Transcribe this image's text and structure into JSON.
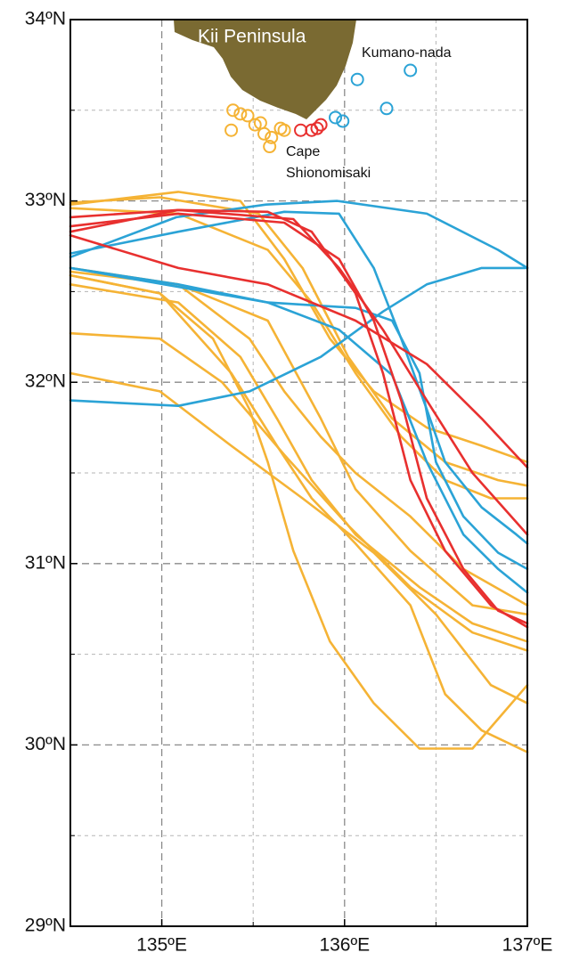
{
  "chart_data": {
    "type": "map",
    "xlim": [
      134.5,
      137
    ],
    "ylim": [
      29,
      34
    ],
    "xticks": [
      {
        "value": 135,
        "label": "135ºE"
      },
      {
        "value": 136,
        "label": "136ºE"
      },
      {
        "value": 137,
        "label": "137ºE"
      }
    ],
    "yticks": [
      {
        "value": 29,
        "label": "29ºN"
      },
      {
        "value": 30,
        "label": "30ºN"
      },
      {
        "value": 31,
        "label": "31ºN"
      },
      {
        "value": 32,
        "label": "32ºN"
      },
      {
        "value": 33,
        "label": "33ºN"
      },
      {
        "value": 34,
        "label": "34ºN"
      }
    ],
    "xminorticks": [
      135.5,
      136.5
    ],
    "yminorticks": [
      29.5,
      30.5,
      31.5,
      32.5,
      33.5
    ],
    "grid": true,
    "annotations": [
      "Kii Peninsula",
      "Kumano-nada",
      "Cape",
      "Shionomisaki"
    ],
    "tracks": [
      {
        "color": "#f5b335",
        "lon": [
          134.5,
          135.09,
          135.43,
          135.67,
          135.92,
          136.16,
          136.45,
          136.75,
          137
        ],
        "lat": [
          32.98,
          33.05,
          33.0,
          32.68,
          32.24,
          31.95,
          31.75,
          31.65,
          31.56
        ]
      },
      {
        "color": "#f5b335",
        "lon": [
          134.5,
          135.09,
          135.48,
          135.67,
          135.87,
          136.06,
          136.36,
          136.65,
          137
        ],
        "lat": [
          32.63,
          32.54,
          32.24,
          31.95,
          31.7,
          31.5,
          31.26,
          30.97,
          30.77
        ]
      },
      {
        "color": "#f5b335",
        "lon": [
          134.5,
          135.09,
          135.43,
          135.63,
          135.82,
          136.06,
          136.41,
          136.7,
          137
        ],
        "lat": [
          32.54,
          32.44,
          32.14,
          31.8,
          31.46,
          31.16,
          30.87,
          30.67,
          30.57
        ]
      },
      {
        "color": "#f5b335",
        "lon": [
          134.5,
          134.99,
          135.28,
          135.48,
          135.58,
          135.72,
          135.92,
          136.16,
          136.41,
          136.7,
          137
        ],
        "lat": [
          32.59,
          32.49,
          32.24,
          31.85,
          31.56,
          31.07,
          30.57,
          30.23,
          29.98,
          29.98,
          30.33
        ]
      },
      {
        "color": "#f5b335",
        "lon": [
          134.5,
          134.99,
          135.33,
          135.67,
          136.02,
          136.36,
          136.7,
          137
        ],
        "lat": [
          32.27,
          32.24,
          32.0,
          31.6,
          31.21,
          30.87,
          30.62,
          30.52
        ]
      },
      {
        "color": "#f5b335",
        "lon": [
          134.5,
          134.99,
          135.38,
          135.77,
          136.16,
          136.5,
          136.8,
          137
        ],
        "lat": [
          32.05,
          31.95,
          31.65,
          31.36,
          31.06,
          30.72,
          30.33,
          30.23
        ]
      },
      {
        "color": "#f5b335",
        "lon": [
          134.5,
          135.09,
          135.58,
          135.82,
          136.06,
          136.31,
          136.55,
          136.8,
          137
        ],
        "lat": [
          32.96,
          32.93,
          32.73,
          32.44,
          32.05,
          31.7,
          31.46,
          31.36,
          31.36
        ]
      },
      {
        "color": "#f5b335",
        "lon": [
          134.5,
          134.99,
          135.53,
          135.77,
          136.02,
          136.26,
          136.55,
          136.84,
          137
        ],
        "lat": [
          32.99,
          33.02,
          32.93,
          32.63,
          32.14,
          31.8,
          31.56,
          31.46,
          31.43
        ]
      },
      {
        "color": "#f5b335",
        "lon": [
          134.5,
          134.99,
          135.38,
          135.63,
          135.82,
          136.06,
          136.36,
          136.55,
          136.75,
          137
        ],
        "lat": [
          32.59,
          32.49,
          32.05,
          31.65,
          31.36,
          31.11,
          30.77,
          30.28,
          30.08,
          29.96
        ]
      },
      {
        "color": "#f5b335",
        "lon": [
          134.5,
          135.09,
          135.58,
          135.87,
          136.06,
          136.36,
          136.7,
          137
        ],
        "lat": [
          32.61,
          32.54,
          32.34,
          31.8,
          31.41,
          31.07,
          30.77,
          30.72
        ]
      },
      {
        "color": "#2ba3d6",
        "lon": [
          134.5,
          135.08,
          135.57,
          135.96,
          136.45,
          136.84,
          137
        ],
        "lat": [
          32.69,
          32.91,
          32.98,
          33.0,
          32.93,
          32.73,
          32.63
        ]
      },
      {
        "color": "#2ba3d6",
        "lon": [
          134.5,
          135.09,
          135.67,
          135.97,
          136.16,
          136.31,
          136.45,
          136.55,
          136.75,
          136.94,
          137
        ],
        "lat": [
          32.71,
          32.83,
          32.94,
          32.93,
          32.63,
          32.24,
          31.85,
          31.56,
          31.31,
          31.16,
          31.11
        ]
      },
      {
        "color": "#2ba3d6",
        "lon": [
          134.5,
          135.09,
          135.58,
          136.06,
          136.26,
          136.41,
          136.5,
          136.65,
          136.84,
          137
        ],
        "lat": [
          32.63,
          32.54,
          32.44,
          32.41,
          32.34,
          32.05,
          31.56,
          31.26,
          31.06,
          30.97
        ]
      },
      {
        "color": "#2ba3d6",
        "lon": [
          134.5,
          135.09,
          135.48,
          135.87,
          136.21,
          136.45,
          136.75,
          137
        ],
        "lat": [
          31.9,
          31.87,
          31.95,
          32.14,
          32.39,
          32.54,
          32.63,
          32.63
        ]
      },
      {
        "color": "#2ba3d6",
        "lon": [
          134.5,
          135.58,
          135.97,
          136.26,
          136.45,
          136.65,
          136.84,
          137
        ],
        "lat": [
          32.63,
          32.44,
          32.29,
          32.04,
          31.56,
          31.16,
          30.97,
          30.84
        ]
      },
      {
        "color": "#e8302f",
        "lon": [
          134.5,
          135.09,
          135.58,
          135.82,
          136.06,
          136.21,
          136.36,
          136.55,
          136.8,
          137
        ],
        "lat": [
          32.83,
          32.95,
          32.94,
          32.83,
          32.49,
          32.05,
          31.46,
          31.07,
          30.77,
          30.65
        ]
      },
      {
        "color": "#e8302f",
        "lon": [
          134.5,
          135.09,
          135.72,
          135.97,
          136.21,
          136.45,
          136.7,
          137
        ],
        "lat": [
          32.91,
          32.95,
          32.9,
          32.63,
          32.29,
          31.9,
          31.5,
          31.16
        ]
      },
      {
        "color": "#e8302f",
        "lon": [
          134.5,
          135.09,
          135.58,
          136.06,
          136.45,
          136.75,
          137
        ],
        "lat": [
          32.81,
          32.63,
          32.54,
          32.34,
          32.1,
          31.8,
          31.53
        ]
      },
      {
        "color": "#e8302f",
        "lon": [
          134.5,
          135.09,
          135.67,
          135.97,
          136.16,
          136.31,
          136.45,
          136.65,
          136.84,
          137
        ],
        "lat": [
          32.86,
          32.93,
          32.88,
          32.68,
          32.34,
          31.9,
          31.36,
          30.97,
          30.74,
          30.67
        ]
      }
    ],
    "points": [
      {
        "color": "#f5b335",
        "lon": [
          135.39,
          135.43,
          135.47,
          135.38,
          135.51,
          135.56,
          135.6,
          135.59,
          135.65,
          135.67,
          135.54
        ],
        "lat": [
          33.5,
          33.48,
          33.47,
          33.39,
          33.42,
          33.37,
          33.35,
          33.3,
          33.4,
          33.39,
          33.43
        ]
      },
      {
        "color": "#e8302f",
        "lon": [
          135.76,
          135.82,
          135.85,
          135.87
        ],
        "lat": [
          33.39,
          33.39,
          33.4,
          33.42
        ]
      },
      {
        "color": "#2ba3d6",
        "lon": [
          135.95,
          135.99,
          136.07,
          136.23,
          136.36
        ],
        "lat": [
          33.46,
          33.44,
          33.67,
          33.51,
          33.72
        ]
      }
    ]
  }
}
